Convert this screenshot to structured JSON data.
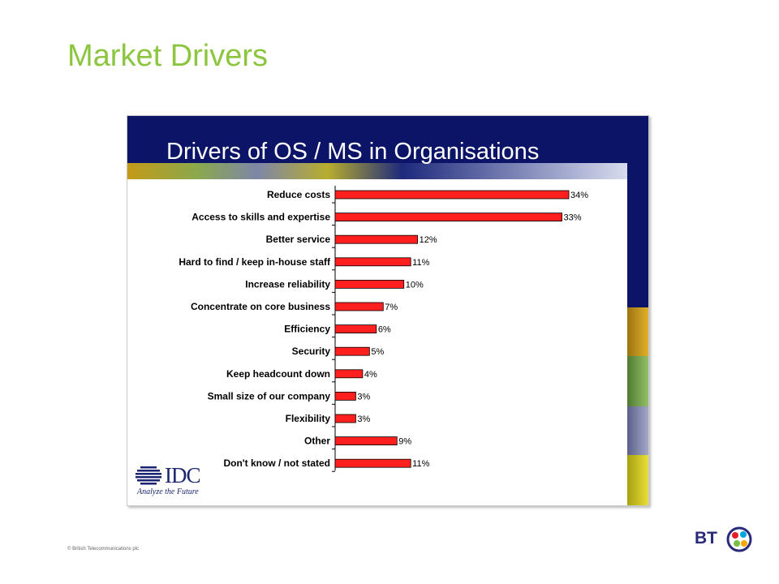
{
  "slide": {
    "title": "Market Drivers",
    "copyright": "© British Telecommunications plc",
    "brand_logo": "BT",
    "colors": {
      "title": "#8cc63f",
      "navy": "#0b1466",
      "bar": "#ff1f1f"
    }
  },
  "source_logo": {
    "name": "IDC",
    "tagline": "Analyze the Future"
  },
  "chart_data": {
    "type": "bar",
    "orientation": "horizontal",
    "title": "Drivers of OS / MS in Organisations",
    "categories": [
      "Reduce costs",
      "Access to skills and expertise",
      "Better service",
      "Hard to find / keep in-house staff",
      "Increase reliability",
      "Concentrate on core business",
      "Efficiency",
      "Security",
      "Keep headcount down",
      "Small size of our company",
      "Flexibility",
      "Other",
      "Don't know / not stated"
    ],
    "values": [
      34,
      33,
      12,
      11,
      10,
      7,
      6,
      5,
      4,
      3,
      3,
      9,
      11
    ],
    "value_labels": [
      "34%",
      "33%",
      "12%",
      "11%",
      "10%",
      "7%",
      "6%",
      "5%",
      "4%",
      "3%",
      "3%",
      "9%",
      "11%"
    ],
    "unit": "%",
    "xlim": [
      0,
      34
    ],
    "bar_color": "#ff1f1f"
  }
}
